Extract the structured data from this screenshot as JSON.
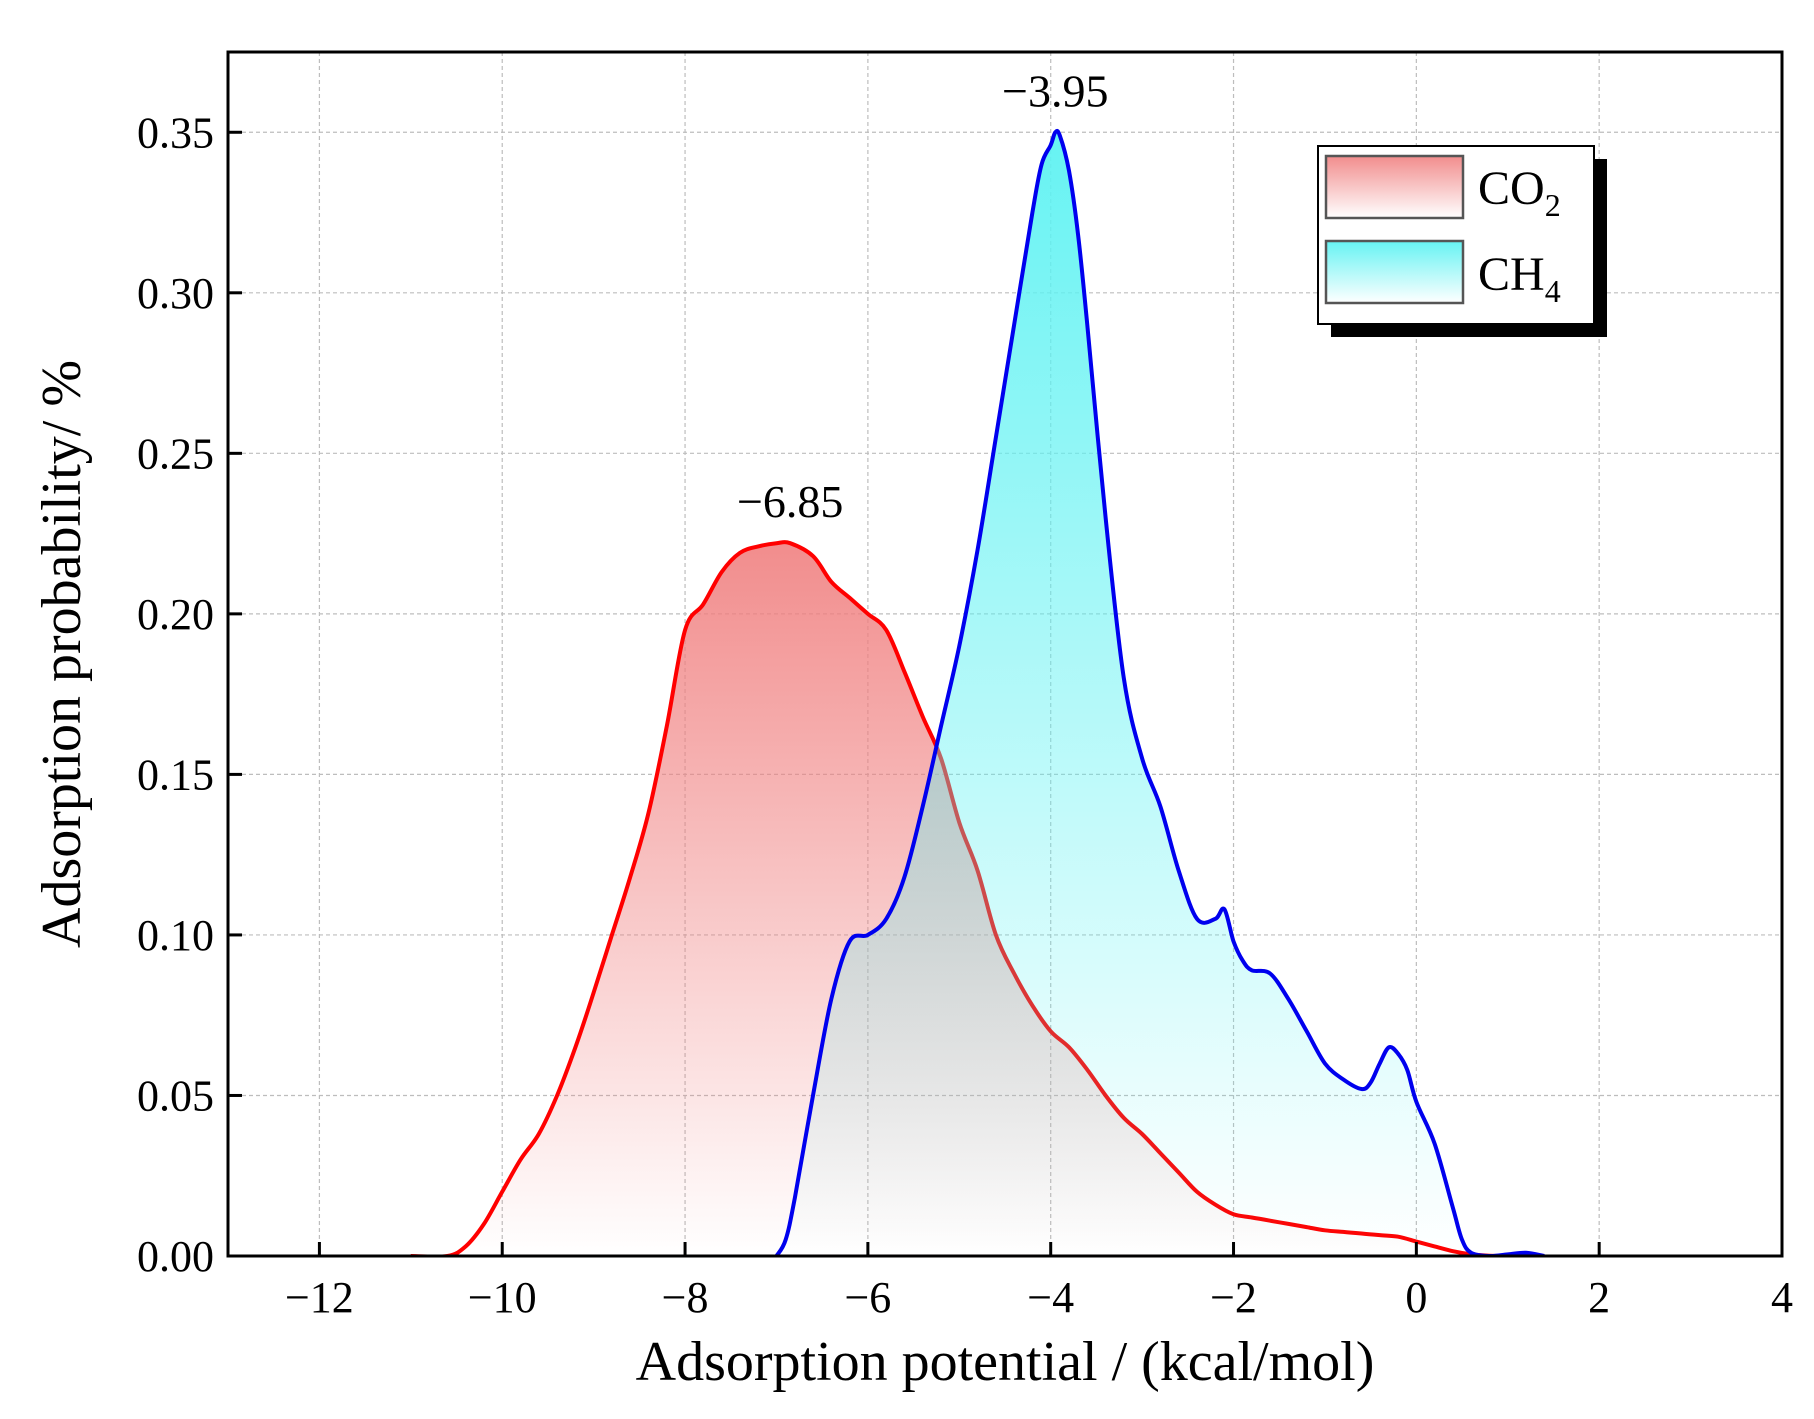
{
  "chart_data": {
    "type": "area",
    "xlabel": "Adsorption potential  / (kcal/mol)",
    "ylabel": "Adsorption probability/ %",
    "xlim": [
      -13,
      4
    ],
    "ylim": [
      0,
      0.375
    ],
    "x_ticks": [
      -12,
      -10,
      -8,
      -6,
      -4,
      -2,
      0,
      2,
      4
    ],
    "x_tick_labels": [
      "−12",
      "−10",
      "−8",
      "−6",
      "−4",
      "−2",
      "0",
      "2",
      "4"
    ],
    "y_ticks": [
      0,
      0.05,
      0.1,
      0.15,
      0.2,
      0.25,
      0.3,
      0.35
    ],
    "y_tick_labels": [
      "0.00",
      "0.05",
      "0.10",
      "0.15",
      "0.20",
      "0.25",
      "0.30",
      "0.35"
    ],
    "grid": true,
    "legend_position": "top-right",
    "series": [
      {
        "name": "CO",
        "subscript": "2",
        "color": "#ff0000",
        "fill_color": "#f08080",
        "x": [
          -11.0,
          -10.6,
          -10.4,
          -10.2,
          -10.0,
          -9.8,
          -9.6,
          -9.4,
          -9.2,
          -9.0,
          -8.8,
          -8.6,
          -8.4,
          -8.2,
          -8.0,
          -7.8,
          -7.6,
          -7.4,
          -7.2,
          -7.0,
          -6.85,
          -6.6,
          -6.4,
          -6.2,
          -6.0,
          -5.8,
          -5.6,
          -5.4,
          -5.2,
          -5.0,
          -4.8,
          -4.6,
          -4.4,
          -4.2,
          -4.0,
          -3.8,
          -3.6,
          -3.4,
          -3.2,
          -3.0,
          -2.8,
          -2.6,
          -2.4,
          -2.2,
          -2.0,
          -1.8,
          -1.6,
          -1.4,
          -1.2,
          -1.0,
          -0.8,
          -0.6,
          -0.4,
          -0.2,
          0.0,
          0.2,
          0.4,
          0.6,
          0.8,
          1.0
        ],
        "y": [
          0.0,
          0.0,
          0.003,
          0.01,
          0.02,
          0.03,
          0.038,
          0.05,
          0.065,
          0.082,
          0.1,
          0.118,
          0.138,
          0.165,
          0.195,
          0.203,
          0.213,
          0.219,
          0.221,
          0.222,
          0.222,
          0.218,
          0.21,
          0.205,
          0.2,
          0.195,
          0.182,
          0.168,
          0.155,
          0.135,
          0.12,
          0.1,
          0.088,
          0.078,
          0.07,
          0.065,
          0.058,
          0.05,
          0.043,
          0.038,
          0.032,
          0.026,
          0.02,
          0.016,
          0.013,
          0.012,
          0.011,
          0.01,
          0.009,
          0.008,
          0.0075,
          0.007,
          0.0065,
          0.006,
          0.0045,
          0.003,
          0.0015,
          0.0005,
          0.0001,
          0.0
        ]
      },
      {
        "name": "CH",
        "subscript": "4",
        "color": "#0000ee",
        "fill_color": "#5ef2f2",
        "x": [
          -7.0,
          -6.9,
          -6.8,
          -6.6,
          -6.4,
          -6.2,
          -6.0,
          -5.8,
          -5.6,
          -5.4,
          -5.2,
          -5.0,
          -4.8,
          -4.6,
          -4.4,
          -4.2,
          -4.1,
          -4.0,
          -3.95,
          -3.9,
          -3.8,
          -3.7,
          -3.6,
          -3.4,
          -3.2,
          -3.0,
          -2.8,
          -2.6,
          -2.4,
          -2.2,
          -2.1,
          -2.0,
          -1.9,
          -1.8,
          -1.6,
          -1.4,
          -1.2,
          -1.0,
          -0.8,
          -0.6,
          -0.5,
          -0.4,
          -0.3,
          -0.2,
          -0.1,
          0.0,
          0.2,
          0.4,
          0.5,
          0.6,
          0.8,
          1.0,
          1.2,
          1.4
        ],
        "y": [
          0.0,
          0.005,
          0.018,
          0.05,
          0.08,
          0.098,
          0.1,
          0.105,
          0.118,
          0.14,
          0.165,
          0.19,
          0.22,
          0.255,
          0.29,
          0.325,
          0.34,
          0.346,
          0.35,
          0.349,
          0.338,
          0.318,
          0.29,
          0.23,
          0.18,
          0.155,
          0.14,
          0.12,
          0.105,
          0.105,
          0.108,
          0.098,
          0.092,
          0.089,
          0.088,
          0.08,
          0.07,
          0.06,
          0.055,
          0.052,
          0.054,
          0.06,
          0.065,
          0.063,
          0.058,
          0.048,
          0.035,
          0.015,
          0.005,
          0.001,
          0.0,
          0.0005,
          0.001,
          0.0
        ]
      }
    ],
    "annotations": [
      {
        "text": "−6.85",
        "x": -6.85,
        "y": 0.222
      },
      {
        "text": "−3.95",
        "x": -3.95,
        "y": 0.35
      }
    ]
  }
}
